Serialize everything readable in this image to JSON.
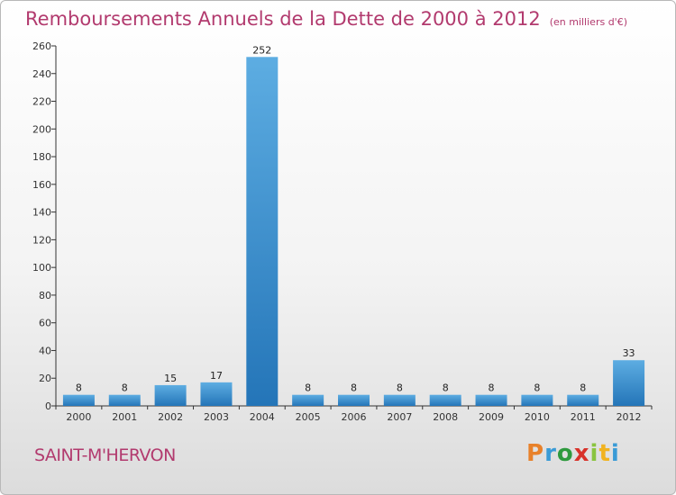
{
  "title": "Remboursements Annuels de la Dette de 2000 à 2012",
  "unit": "(en milliers d'€)",
  "commune": "SAINT-M'HERVON",
  "logo": {
    "letters": [
      "P",
      "r",
      "o",
      "x",
      "i",
      "t",
      "i"
    ],
    "colors": [
      "#e8812a",
      "#3a9bd6",
      "#2e9a3e",
      "#d8322a",
      "#8ac43f",
      "#f1b320",
      "#3a9bd6"
    ]
  },
  "colors": {
    "bar_light": "#5dade2",
    "bar_dark": "#2475b8",
    "title": "#b23a6e"
  },
  "chart_data": {
    "type": "bar",
    "categories": [
      "2000",
      "2001",
      "2002",
      "2003",
      "2004",
      "2005",
      "2006",
      "2007",
      "2008",
      "2009",
      "2010",
      "2011",
      "2012"
    ],
    "values": [
      8,
      8,
      15,
      17,
      252,
      8,
      8,
      8,
      8,
      8,
      8,
      8,
      33
    ],
    "data_labels": [
      "8",
      "8",
      "15",
      "17",
      "252",
      "8",
      "8",
      "8",
      "8",
      "8",
      "8",
      "8",
      "33"
    ],
    "title": "Remboursements Annuels de la Dette de 2000 à 2012",
    "ylim": [
      0,
      260
    ],
    "yticks": [
      0,
      20,
      40,
      60,
      80,
      100,
      120,
      140,
      160,
      180,
      200,
      220,
      240,
      260
    ],
    "grid": false
  }
}
